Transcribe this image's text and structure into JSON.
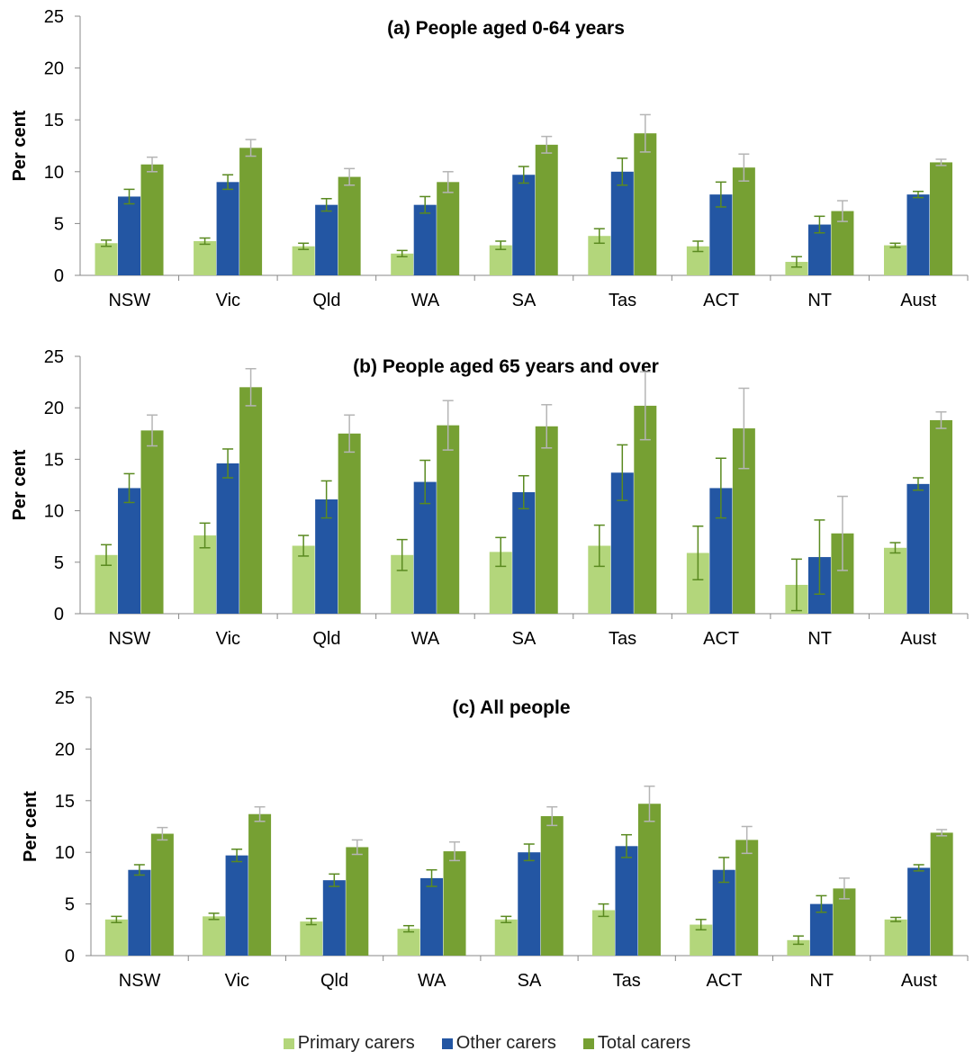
{
  "chart_data": [
    {
      "type": "bar",
      "title": "(a) People aged 0-64 years",
      "ylabel": "Per cent",
      "ylim": [
        0,
        25
      ],
      "yticks": [
        0,
        5,
        10,
        15,
        20,
        25
      ],
      "categories": [
        "NSW",
        "Vic",
        "Qld",
        "WA",
        "SA",
        "Tas",
        "ACT",
        "NT",
        "Aust"
      ],
      "series": [
        {
          "name": "Primary carers",
          "values": [
            3.1,
            3.3,
            2.8,
            2.1,
            2.9,
            3.8,
            2.8,
            1.3,
            2.9
          ],
          "errors": [
            0.3,
            0.3,
            0.3,
            0.3,
            0.4,
            0.7,
            0.5,
            0.5,
            0.2
          ]
        },
        {
          "name": "Other carers",
          "values": [
            7.6,
            9.0,
            6.8,
            6.8,
            9.7,
            10.0,
            7.8,
            4.9,
            7.8
          ],
          "errors": [
            0.7,
            0.7,
            0.6,
            0.8,
            0.8,
            1.3,
            1.2,
            0.8,
            0.3
          ]
        },
        {
          "name": "Total carers",
          "values": [
            10.7,
            12.3,
            9.5,
            9.0,
            12.6,
            13.7,
            10.4,
            6.2,
            10.9
          ],
          "errors": [
            0.7,
            0.8,
            0.8,
            1.0,
            0.8,
            1.8,
            1.3,
            1.0,
            0.3
          ]
        }
      ]
    },
    {
      "type": "bar",
      "title": "(b) People aged 65 years and over",
      "ylabel": "Per cent",
      "ylim": [
        0,
        25
      ],
      "yticks": [
        0,
        5,
        10,
        15,
        20,
        25
      ],
      "categories": [
        "NSW",
        "Vic",
        "Qld",
        "WA",
        "SA",
        "Tas",
        "ACT",
        "NT",
        "Aust"
      ],
      "series": [
        {
          "name": "Primary carers",
          "values": [
            5.7,
            7.6,
            6.6,
            5.7,
            6.0,
            6.6,
            5.9,
            2.8,
            6.4
          ],
          "errors": [
            1.0,
            1.2,
            1.0,
            1.5,
            1.4,
            2.0,
            2.6,
            2.5,
            0.5
          ]
        },
        {
          "name": "Other carers",
          "values": [
            12.2,
            14.6,
            11.1,
            12.8,
            11.8,
            13.7,
            12.2,
            5.5,
            12.6
          ],
          "errors": [
            1.4,
            1.4,
            1.8,
            2.1,
            1.6,
            2.7,
            2.9,
            3.6,
            0.6
          ]
        },
        {
          "name": "Total carers",
          "values": [
            17.8,
            22.0,
            17.5,
            18.3,
            18.2,
            20.2,
            18.0,
            7.8,
            18.8
          ],
          "errors": [
            1.5,
            1.8,
            1.8,
            2.4,
            2.1,
            3.3,
            3.9,
            3.6,
            0.8
          ]
        }
      ]
    },
    {
      "type": "bar",
      "title": "(c) All people",
      "ylabel": "Per cent",
      "ylim": [
        0,
        25
      ],
      "yticks": [
        0,
        5,
        10,
        15,
        20,
        25
      ],
      "categories": [
        "NSW",
        "Vic",
        "Qld",
        "WA",
        "SA",
        "Tas",
        "ACT",
        "NT",
        "Aust"
      ],
      "series": [
        {
          "name": "Primary carers",
          "values": [
            3.5,
            3.8,
            3.3,
            2.6,
            3.5,
            4.4,
            3.0,
            1.5,
            3.5
          ],
          "errors": [
            0.3,
            0.3,
            0.3,
            0.3,
            0.3,
            0.6,
            0.5,
            0.4,
            0.2
          ]
        },
        {
          "name": "Other carers",
          "values": [
            8.3,
            9.7,
            7.3,
            7.5,
            10.0,
            10.6,
            8.3,
            5.0,
            8.5
          ],
          "errors": [
            0.5,
            0.6,
            0.6,
            0.8,
            0.8,
            1.1,
            1.2,
            0.8,
            0.3
          ]
        },
        {
          "name": "Total carers",
          "values": [
            11.8,
            13.7,
            10.5,
            10.1,
            13.5,
            14.7,
            11.2,
            6.5,
            11.9
          ],
          "errors": [
            0.6,
            0.7,
            0.7,
            0.9,
            0.9,
            1.7,
            1.3,
            1.0,
            0.3
          ]
        }
      ]
    }
  ],
  "legend": {
    "items": [
      {
        "label": "Primary carers",
        "color": "#b3d67b"
      },
      {
        "label": "Other carers",
        "color": "#2356a3"
      },
      {
        "label": "Total carers",
        "color": "#76a033"
      }
    ]
  },
  "colors": {
    "primary": "#b3d67b",
    "other": "#2356a3",
    "total": "#76a033",
    "error_primary_other": "#5a8a20",
    "error_total": "#b5b5b5",
    "axis": "#888888"
  }
}
